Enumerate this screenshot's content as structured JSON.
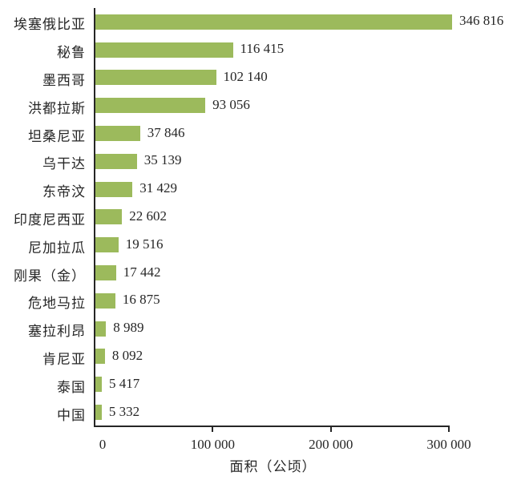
{
  "chart_data": {
    "type": "bar",
    "orientation": "horizontal",
    "title": "",
    "xlabel": "面积（公顷）",
    "ylabel": "",
    "categories": [
      "埃塞俄比亚",
      "秘鲁",
      "墨西哥",
      "洪都拉斯",
      "坦桑尼亚",
      "乌干达",
      "东帝汶",
      "印度尼西亚",
      "尼加拉瓜",
      "刚果（金）",
      "危地马拉",
      "塞拉利昂",
      "肯尼亚",
      "泰国",
      "中国"
    ],
    "values": [
      346816,
      116415,
      102140,
      93056,
      37846,
      35139,
      31429,
      22602,
      19516,
      17442,
      16875,
      8989,
      8092,
      5417,
      5332
    ],
    "value_labels": [
      "346 816",
      "116 415",
      "102 140",
      "93 056",
      "37 846",
      "35 139",
      "31 429",
      "22 602",
      "19 516",
      "17 442",
      "16 875",
      "8 989",
      "8 092",
      "5 417",
      "5 332"
    ],
    "x_ticks": [
      {
        "value": 0,
        "label": "0"
      },
      {
        "value": 100000,
        "label": "100 000"
      },
      {
        "value": 200000,
        "label": "200 000"
      },
      {
        "value": 300000,
        "label": "300 000"
      }
    ],
    "xlim": [
      0,
      302000
    ],
    "grid": false,
    "legend": false,
    "bar_color": "#9cba5c",
    "axis_color": "#262626",
    "text_color": "#262626"
  }
}
